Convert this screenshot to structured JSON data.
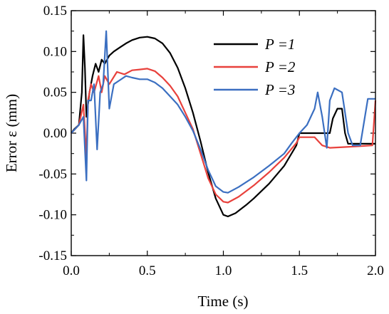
{
  "chart_data": {
    "type": "line",
    "xlabel": "Time (s)",
    "ylabel": "Error ε (mm)",
    "xlim": [
      0.0,
      2.0
    ],
    "ylim": [
      -0.15,
      0.15
    ],
    "xticks": [
      "0.0",
      "0.5",
      "1.0",
      "1.5",
      "2.0"
    ],
    "yticks": [
      "0.15",
      "0.10",
      "0.05",
      "0.00",
      "-0.05",
      "-0.10",
      "-0.15"
    ],
    "legend_position": "top-right",
    "series": [
      {
        "name": "P =1",
        "color": "#000000",
        "points": [
          [
            0.0,
            0.0
          ],
          [
            0.02,
            0.005
          ],
          [
            0.05,
            0.01
          ],
          [
            0.07,
            0.05
          ],
          [
            0.08,
            0.12
          ],
          [
            0.09,
            0.08
          ],
          [
            0.1,
            0.02
          ],
          [
            0.12,
            0.05
          ],
          [
            0.14,
            0.07
          ],
          [
            0.16,
            0.085
          ],
          [
            0.18,
            0.075
          ],
          [
            0.2,
            0.09
          ],
          [
            0.22,
            0.085
          ],
          [
            0.25,
            0.095
          ],
          [
            0.28,
            0.1
          ],
          [
            0.32,
            0.105
          ],
          [
            0.36,
            0.11
          ],
          [
            0.4,
            0.114
          ],
          [
            0.45,
            0.117
          ],
          [
            0.5,
            0.118
          ],
          [
            0.55,
            0.116
          ],
          [
            0.6,
            0.11
          ],
          [
            0.65,
            0.098
          ],
          [
            0.7,
            0.08
          ],
          [
            0.75,
            0.055
          ],
          [
            0.8,
            0.025
          ],
          [
            0.85,
            -0.01
          ],
          [
            0.9,
            -0.048
          ],
          [
            0.95,
            -0.08
          ],
          [
            1.0,
            -0.1
          ],
          [
            1.03,
            -0.102
          ],
          [
            1.08,
            -0.098
          ],
          [
            1.15,
            -0.088
          ],
          [
            1.2,
            -0.08
          ],
          [
            1.3,
            -0.062
          ],
          [
            1.4,
            -0.04
          ],
          [
            1.48,
            -0.015
          ],
          [
            1.5,
            0.0
          ],
          [
            1.6,
            0.0
          ],
          [
            1.7,
            0.0
          ],
          [
            1.72,
            0.018
          ],
          [
            1.75,
            0.03
          ],
          [
            1.78,
            0.03
          ],
          [
            1.8,
            0.0
          ],
          [
            1.82,
            -0.013
          ],
          [
            1.9,
            -0.013
          ],
          [
            2.0,
            -0.013
          ]
        ]
      },
      {
        "name": "P =2",
        "color": "#e8413c",
        "points": [
          [
            0.0,
            0.0
          ],
          [
            0.05,
            0.01
          ],
          [
            0.08,
            0.035
          ],
          [
            0.1,
            -0.03
          ],
          [
            0.11,
            0.04
          ],
          [
            0.13,
            0.06
          ],
          [
            0.15,
            0.05
          ],
          [
            0.18,
            0.07
          ],
          [
            0.2,
            0.05
          ],
          [
            0.22,
            0.07
          ],
          [
            0.25,
            0.06
          ],
          [
            0.3,
            0.075
          ],
          [
            0.35,
            0.072
          ],
          [
            0.4,
            0.077
          ],
          [
            0.45,
            0.078
          ],
          [
            0.5,
            0.079
          ],
          [
            0.55,
            0.076
          ],
          [
            0.6,
            0.068
          ],
          [
            0.65,
            0.058
          ],
          [
            0.7,
            0.045
          ],
          [
            0.75,
            0.025
          ],
          [
            0.8,
            0.005
          ],
          [
            0.85,
            -0.025
          ],
          [
            0.9,
            -0.055
          ],
          [
            0.95,
            -0.075
          ],
          [
            1.0,
            -0.084
          ],
          [
            1.03,
            -0.085
          ],
          [
            1.1,
            -0.078
          ],
          [
            1.2,
            -0.064
          ],
          [
            1.3,
            -0.048
          ],
          [
            1.4,
            -0.03
          ],
          [
            1.48,
            -0.012
          ],
          [
            1.5,
            -0.005
          ],
          [
            1.6,
            -0.005
          ],
          [
            1.65,
            -0.015
          ],
          [
            1.7,
            -0.018
          ],
          [
            1.8,
            -0.017
          ],
          [
            1.9,
            -0.016
          ],
          [
            1.98,
            -0.015
          ],
          [
            2.0,
            0.04
          ]
        ]
      },
      {
        "name": "P =3",
        "color": "#3b6fc1",
        "points": [
          [
            0.0,
            0.0
          ],
          [
            0.05,
            0.01
          ],
          [
            0.08,
            0.02
          ],
          [
            0.1,
            -0.058
          ],
          [
            0.11,
            0.04
          ],
          [
            0.13,
            0.04
          ],
          [
            0.15,
            0.06
          ],
          [
            0.17,
            -0.02
          ],
          [
            0.19,
            0.05
          ],
          [
            0.21,
            0.06
          ],
          [
            0.23,
            0.125
          ],
          [
            0.25,
            0.03
          ],
          [
            0.28,
            0.06
          ],
          [
            0.32,
            0.065
          ],
          [
            0.36,
            0.07
          ],
          [
            0.4,
            0.068
          ],
          [
            0.45,
            0.066
          ],
          [
            0.5,
            0.066
          ],
          [
            0.55,
            0.062
          ],
          [
            0.6,
            0.055
          ],
          [
            0.65,
            0.045
          ],
          [
            0.7,
            0.035
          ],
          [
            0.75,
            0.02
          ],
          [
            0.8,
            0.003
          ],
          [
            0.85,
            -0.02
          ],
          [
            0.9,
            -0.045
          ],
          [
            0.95,
            -0.065
          ],
          [
            1.0,
            -0.072
          ],
          [
            1.03,
            -0.073
          ],
          [
            1.1,
            -0.066
          ],
          [
            1.2,
            -0.054
          ],
          [
            1.3,
            -0.04
          ],
          [
            1.4,
            -0.025
          ],
          [
            1.45,
            -0.012
          ],
          [
            1.5,
            0.0
          ],
          [
            1.55,
            0.01
          ],
          [
            1.6,
            0.03
          ],
          [
            1.62,
            0.05
          ],
          [
            1.65,
            0.02
          ],
          [
            1.68,
            -0.018
          ],
          [
            1.7,
            0.04
          ],
          [
            1.73,
            0.055
          ],
          [
            1.78,
            0.05
          ],
          [
            1.82,
            0.0
          ],
          [
            1.85,
            -0.015
          ],
          [
            1.9,
            -0.015
          ],
          [
            1.95,
            0.042
          ],
          [
            2.0,
            0.042
          ]
        ]
      }
    ]
  }
}
